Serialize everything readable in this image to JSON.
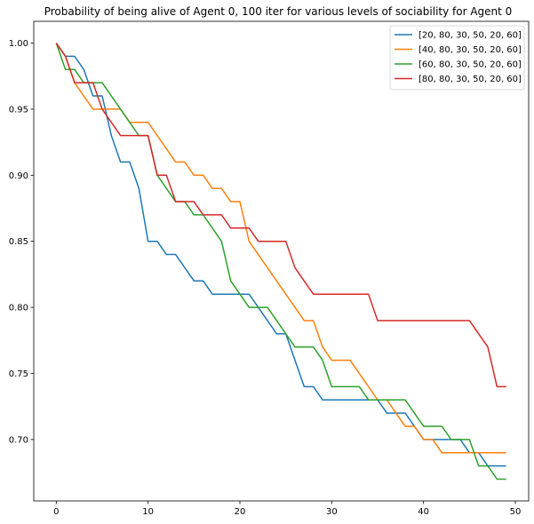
{
  "chart_data": {
    "type": "line",
    "title": "Probability of being alive of Agent 0, 100 iter for various levels of sociability for Agent 0",
    "xlabel": "",
    "ylabel": "",
    "xlim": [
      -2.45,
      51.45
    ],
    "ylim": [
      0.6535,
      1.0165
    ],
    "x_ticks": [
      0,
      10,
      20,
      30,
      40,
      50
    ],
    "y_ticks": [
      0.7,
      0.75,
      0.8,
      0.85,
      0.9,
      0.95,
      1.0
    ],
    "y_tick_labels": [
      "0.70",
      "0.75",
      "0.80",
      "0.85",
      "0.90",
      "0.95",
      "1.00"
    ],
    "grid": false,
    "legend_position": "top-right",
    "x": [
      0,
      1,
      2,
      3,
      4,
      5,
      6,
      7,
      8,
      9,
      10,
      11,
      12,
      13,
      14,
      15,
      16,
      17,
      18,
      19,
      20,
      21,
      22,
      23,
      24,
      25,
      26,
      27,
      28,
      29,
      30,
      31,
      32,
      33,
      34,
      35,
      36,
      37,
      38,
      39,
      40,
      41,
      42,
      43,
      44,
      45,
      46,
      47,
      48,
      49
    ],
    "series": [
      {
        "name": "[20, 80, 30, 50, 20, 60]",
        "color": "#1f77b4",
        "values": [
          1.0,
          0.99,
          0.99,
          0.98,
          0.96,
          0.96,
          0.93,
          0.91,
          0.91,
          0.89,
          0.85,
          0.85,
          0.84,
          0.84,
          0.83,
          0.82,
          0.82,
          0.81,
          0.81,
          0.81,
          0.81,
          0.81,
          0.8,
          0.79,
          0.78,
          0.78,
          0.76,
          0.74,
          0.74,
          0.73,
          0.73,
          0.73,
          0.73,
          0.73,
          0.73,
          0.73,
          0.72,
          0.72,
          0.72,
          0.71,
          0.7,
          0.7,
          0.7,
          0.7,
          0.7,
          0.69,
          0.69,
          0.68,
          0.68,
          0.68
        ]
      },
      {
        "name": "[40, 80, 30, 50, 20, 60]",
        "color": "#ff7f0e",
        "values": [
          1.0,
          0.99,
          0.97,
          0.96,
          0.95,
          0.95,
          0.95,
          0.95,
          0.94,
          0.94,
          0.94,
          0.93,
          0.92,
          0.91,
          0.91,
          0.9,
          0.9,
          0.89,
          0.89,
          0.88,
          0.88,
          0.85,
          0.84,
          0.83,
          0.82,
          0.81,
          0.8,
          0.79,
          0.79,
          0.77,
          0.76,
          0.76,
          0.76,
          0.75,
          0.74,
          0.73,
          0.73,
          0.72,
          0.71,
          0.71,
          0.7,
          0.7,
          0.69,
          0.69,
          0.69,
          0.69,
          0.69,
          0.69,
          0.69,
          0.69
        ]
      },
      {
        "name": "[60, 80, 30, 50, 20, 60]",
        "color": "#2ca02c",
        "values": [
          1.0,
          0.98,
          0.98,
          0.97,
          0.97,
          0.97,
          0.96,
          0.95,
          0.94,
          0.93,
          0.93,
          0.9,
          0.89,
          0.88,
          0.88,
          0.87,
          0.87,
          0.86,
          0.85,
          0.82,
          0.81,
          0.8,
          0.8,
          0.8,
          0.79,
          0.78,
          0.77,
          0.77,
          0.77,
          0.76,
          0.74,
          0.74,
          0.74,
          0.74,
          0.73,
          0.73,
          0.73,
          0.73,
          0.73,
          0.72,
          0.71,
          0.71,
          0.71,
          0.7,
          0.7,
          0.7,
          0.68,
          0.68,
          0.67,
          0.67
        ]
      },
      {
        "name": "[80, 80, 30, 50, 20, 60]",
        "color": "#d62728",
        "values": [
          1.0,
          0.99,
          0.97,
          0.97,
          0.97,
          0.95,
          0.94,
          0.93,
          0.93,
          0.93,
          0.93,
          0.9,
          0.9,
          0.88,
          0.88,
          0.88,
          0.87,
          0.87,
          0.87,
          0.86,
          0.86,
          0.86,
          0.85,
          0.85,
          0.85,
          0.85,
          0.83,
          0.82,
          0.81,
          0.81,
          0.81,
          0.81,
          0.81,
          0.81,
          0.81,
          0.79,
          0.79,
          0.79,
          0.79,
          0.79,
          0.79,
          0.79,
          0.79,
          0.79,
          0.79,
          0.79,
          0.78,
          0.77,
          0.74,
          0.74
        ]
      }
    ]
  }
}
